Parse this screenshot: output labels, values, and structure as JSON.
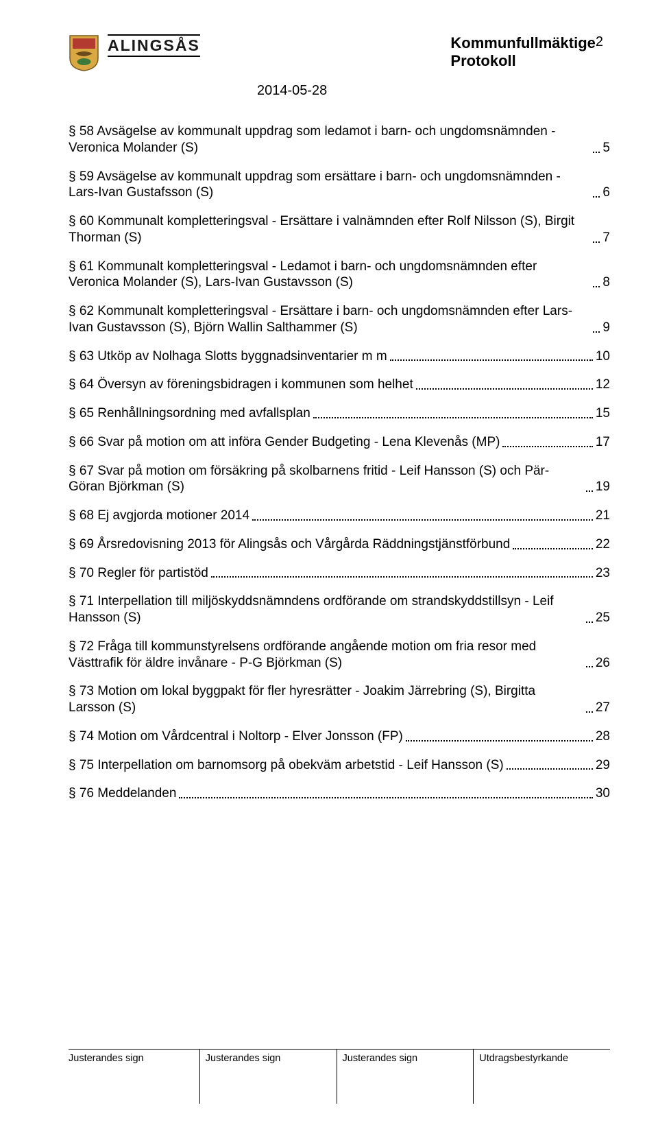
{
  "header": {
    "brand": "ALINGSÅS",
    "title": "Kommunfullmäktige",
    "subtitle": "Protokoll",
    "date": "2014-05-28",
    "page_number": "2"
  },
  "toc": {
    "entries": [
      {
        "text": "§ 58 Avsägelse av kommunalt uppdrag som ledamot i barn- och ungdomsnämnden - Veronica Molander (S)",
        "page": "5"
      },
      {
        "text": "§ 59 Avsägelse av kommunalt uppdrag som ersättare i barn- och ungdomsnämnden - Lars-Ivan Gustafsson (S)",
        "page": "6"
      },
      {
        "text": "§ 60 Kommunalt kompletteringsval - Ersättare i valnämnden efter Rolf Nilsson (S), Birgit Thorman (S)",
        "page": "7"
      },
      {
        "text": "§ 61 Kommunalt kompletteringsval - Ledamot i barn- och ungdomsnämnden efter Veronica Molander (S), Lars-Ivan Gustavsson (S)",
        "page": "8"
      },
      {
        "text": "§ 62 Kommunalt kompletteringsval - Ersättare i barn- och ungdomsnämnden efter Lars-Ivan Gustavsson (S), Björn Wallin Salthammer (S)",
        "page": "9"
      },
      {
        "text": "§ 63 Utköp av Nolhaga Slotts byggnadsinventarier m m",
        "page": "10"
      },
      {
        "text": "§ 64 Översyn av föreningsbidragen i kommunen som helhet",
        "page": "12"
      },
      {
        "text": "§ 65 Renhållningsordning med avfallsplan",
        "page": "15"
      },
      {
        "text": "§ 66 Svar på motion om att införa Gender Budgeting - Lena Klevenås (MP)",
        "page": "17"
      },
      {
        "text": "§ 67 Svar på motion om försäkring på skolbarnens fritid - Leif Hansson (S) och Pär-Göran Björkman (S)",
        "page": "19"
      },
      {
        "text": "§ 68 Ej avgjorda motioner 2014",
        "page": "21"
      },
      {
        "text": "§ 69 Årsredovisning 2013 för Alingsås och Vårgårda Räddningstjänstförbund",
        "page": "22"
      },
      {
        "text": "§ 70 Regler för partistöd",
        "page": "23"
      },
      {
        "text": "§ 71 Interpellation till miljöskyddsnämndens ordförande om strandskyddstillsyn - Leif Hansson (S)",
        "page": "25"
      },
      {
        "text": "§ 72 Fråga till kommunstyrelsens ordförande angående motion om fria resor med Västtrafik för äldre invånare - P-G Björkman (S)",
        "page": "26"
      },
      {
        "text": "§ 73 Motion om lokal byggpakt för fler hyresrätter - Joakim Järrebring (S), Birgitta Larsson (S)",
        "page": "27"
      },
      {
        "text": "§ 74 Motion om Vårdcentral i Noltorp - Elver Jonsson (FP)",
        "page": "28"
      },
      {
        "text": "§ 75 Interpellation om barnomsorg på obekväm arbetstid - Leif Hansson (S)",
        "page": "29"
      },
      {
        "text": "§ 76 Meddelanden",
        "page": "30"
      }
    ]
  },
  "footer": {
    "c1": "Justerandes sign",
    "c2": "Justerandes sign",
    "c3": "Justerandes sign",
    "c4": "Utdragsbestyrkande"
  },
  "colors": {
    "text": "#000000",
    "background": "#ffffff",
    "shield_gold": "#d9a843",
    "shield_red": "#b33a2e"
  }
}
